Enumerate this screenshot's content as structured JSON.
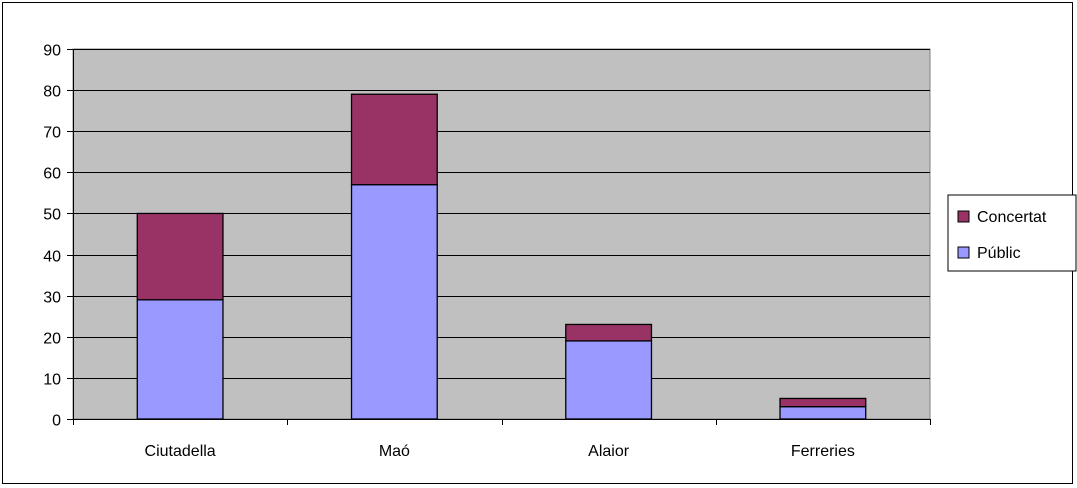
{
  "chart_data": {
    "type": "bar",
    "stacked": true,
    "categories": [
      "Ciutadella",
      "Maó",
      "Alaior",
      "Ferreries"
    ],
    "series": [
      {
        "name": "Públic",
        "values": [
          29,
          57,
          19,
          3
        ],
        "color": "#9999ff"
      },
      {
        "name": "Concertat",
        "values": [
          21,
          22,
          4,
          2
        ],
        "color": "#993366"
      }
    ],
    "ylim": [
      0,
      90
    ],
    "yticks": [
      "0",
      "10",
      "20",
      "30",
      "40",
      "50",
      "60",
      "70",
      "80",
      "90"
    ],
    "grid": true,
    "plot_background": "#c0c0c0",
    "legend_position": "right",
    "legend": [
      {
        "name": "Concertat",
        "color": "#993366"
      },
      {
        "name": "Públic",
        "color": "#9999ff"
      }
    ]
  }
}
